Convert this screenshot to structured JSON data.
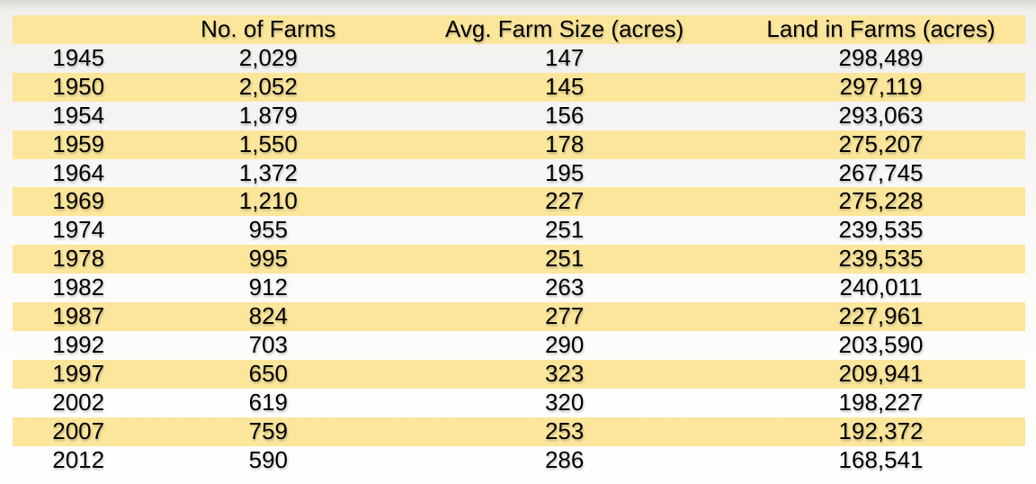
{
  "chart_data": {
    "type": "table",
    "title": "",
    "columns": [
      "",
      "No. of Farms",
      "Avg. Farm Size (acres)",
      "Land in Farms (acres)"
    ],
    "rows": [
      [
        "1945",
        "2,029",
        "147",
        "298,489"
      ],
      [
        "1950",
        "2,052",
        "145",
        "297,119"
      ],
      [
        "1954",
        "1,879",
        "156",
        "293,063"
      ],
      [
        "1959",
        "1,550",
        "178",
        "275,207"
      ],
      [
        "1964",
        "1,372",
        "195",
        "267,745"
      ],
      [
        "1969",
        "1,210",
        "227",
        "275,228"
      ],
      [
        "1974",
        "955",
        "251",
        "239,535"
      ],
      [
        "1978",
        "995",
        "251",
        "239,535"
      ],
      [
        "1982",
        "912",
        "263",
        "240,011"
      ],
      [
        "1987",
        "824",
        "277",
        "227,961"
      ],
      [
        "1992",
        "703",
        "290",
        "203,590"
      ],
      [
        "1997",
        "650",
        "323",
        "209,941"
      ],
      [
        "2002",
        "619",
        "320",
        "198,227"
      ],
      [
        "2007",
        "759",
        "253",
        "192,372"
      ],
      [
        "2012",
        "590",
        "286",
        "168,541"
      ]
    ],
    "layout": {
      "striped_rows": "header and alternate data rows starting with second data row",
      "legend": "none",
      "grid": "off"
    },
    "colors": {
      "row_highlight": "#FBE69B",
      "text": "#000000",
      "background_top": "#F2F0ED",
      "background_bottom": "#FEFEFE"
    }
  }
}
